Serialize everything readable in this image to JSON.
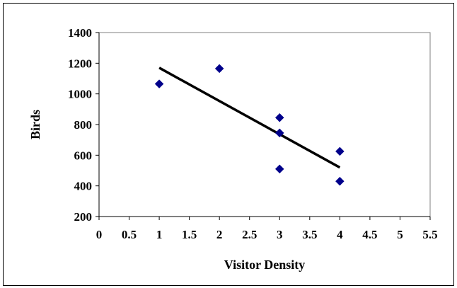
{
  "chart_data": {
    "type": "scatter",
    "title": "",
    "xlabel": "Visitor Density",
    "ylabel": "Birds",
    "xlim": [
      0,
      5.5
    ],
    "ylim": [
      200,
      1400
    ],
    "x_ticks": [
      "0",
      "0.5",
      "1",
      "1.5",
      "2",
      "2.5",
      "3",
      "3.5",
      "4",
      "4.5",
      "5",
      "5.5"
    ],
    "y_ticks": [
      "200",
      "400",
      "600",
      "800",
      "1000",
      "1200",
      "1400"
    ],
    "grid": false,
    "legend": "none",
    "series": [
      {
        "marker": "diamond",
        "color": "#00008B",
        "points": [
          {
            "x": 1,
            "y": 1065
          },
          {
            "x": 2,
            "y": 1165
          },
          {
            "x": 3,
            "y": 845
          },
          {
            "x": 3,
            "y": 745
          },
          {
            "x": 3,
            "y": 510
          },
          {
            "x": 4,
            "y": 625
          },
          {
            "x": 4,
            "y": 430
          }
        ]
      }
    ],
    "trendline": {
      "type": "linear",
      "color": "#000000",
      "points": [
        {
          "x": 1,
          "y": 1170
        },
        {
          "x": 4,
          "y": 520
        }
      ]
    }
  }
}
